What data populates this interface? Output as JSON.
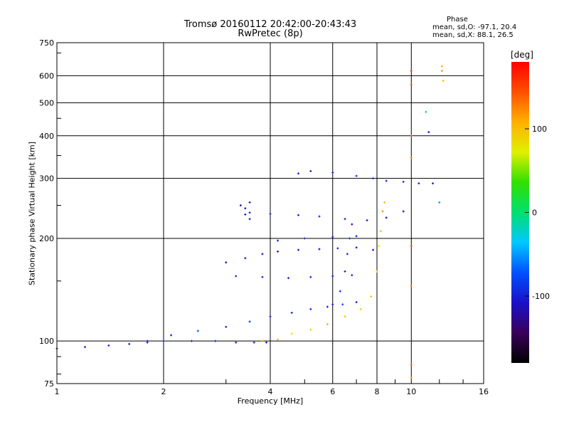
{
  "chart_data": {
    "type": "scatter",
    "title": "Tromsø 20160112 20:42:00-20:43:43",
    "subtitle": "RwPretec (8p)",
    "xlabel": "Frequency [MHz]",
    "ylabel": "Stationary phase Virtual Height [km]",
    "xscale": "log",
    "yscale": "log",
    "xlim": [
      1,
      16
    ],
    "ylim": [
      75,
      750
    ],
    "xticks": [
      "1",
      "2",
      "4",
      "6",
      "8",
      "10",
      "16"
    ],
    "xtick_values": [
      1,
      2,
      4,
      6,
      8,
      10,
      16
    ],
    "yticks": [
      "75",
      "100",
      "200",
      "300",
      "400",
      "500",
      "600",
      "750"
    ],
    "ytick_values": [
      75,
      100,
      200,
      300,
      400,
      500,
      600,
      750
    ],
    "grid": true,
    "phase_stats": {
      "title": "Phase",
      "o_line": "mean, sd,O: -97.1, 20.4",
      "x_line": "mean, sd,X:  88.1, 26.5"
    },
    "colorbar": {
      "unit": "[deg]",
      "ticks": [
        "100",
        "0",
        "-100"
      ],
      "tick_values": [
        100,
        0,
        -100
      ],
      "range": [
        -180,
        180
      ],
      "colors": [
        "#000000",
        "#3a005a",
        "#1a10c8",
        "#0050ff",
        "#00c8ff",
        "#00e070",
        "#30e000",
        "#e0f000",
        "#ffb000",
        "#ff5000",
        "#ff0000"
      ]
    },
    "traces": [
      {
        "name": "",
        "points": [
          [
            1.0,
            95,
            -100
          ],
          [
            1.2,
            96,
            -100
          ],
          [
            1.4,
            97,
            -95
          ],
          [
            1.6,
            98,
            -100
          ],
          [
            1.8,
            99,
            -100
          ],
          [
            2.0,
            100,
            -95
          ],
          [
            2.4,
            100,
            -100
          ],
          [
            2.8,
            100,
            -95
          ],
          [
            3.2,
            99,
            -100
          ],
          [
            3.6,
            99,
            -100
          ],
          [
            3.9,
            99,
            -100
          ]
        ]
      },
      {
        "name": "",
        "points": [
          [
            1.8,
            100,
            -100
          ],
          [
            2.1,
            104,
            -100
          ],
          [
            2.5,
            107,
            -70
          ],
          [
            3.0,
            110,
            -100
          ],
          [
            3.5,
            114,
            -90
          ],
          [
            4.0,
            118,
            -100
          ],
          [
            4.6,
            121,
            -100
          ],
          [
            5.2,
            124,
            -90
          ],
          [
            5.8,
            126,
            -100
          ],
          [
            6.4,
            128,
            -80
          ],
          [
            7.0,
            130,
            -100
          ]
        ]
      },
      {
        "name": "",
        "points": [
          [
            3.8,
            100,
            120
          ],
          [
            4.2,
            101,
            100
          ],
          [
            4.6,
            105,
            80
          ],
          [
            5.2,
            108,
            90
          ],
          [
            5.8,
            112,
            110
          ],
          [
            6.5,
            118,
            100
          ],
          [
            7.2,
            124,
            90
          ],
          [
            7.7,
            135,
            100
          ],
          [
            8.0,
            160,
            90
          ],
          [
            8.1,
            190,
            80
          ],
          [
            8.2,
            210,
            100
          ],
          [
            8.3,
            240,
            120
          ],
          [
            8.4,
            255,
            100
          ]
        ]
      },
      {
        "name": "",
        "points": [
          [
            3.0,
            170,
            -110
          ],
          [
            3.4,
            175,
            -115
          ],
          [
            3.8,
            180,
            -110
          ],
          [
            4.2,
            183,
            -110
          ],
          [
            4.8,
            185,
            -105
          ],
          [
            5.5,
            186,
            -110
          ],
          [
            6.2,
            187,
            -100
          ],
          [
            7.0,
            188,
            -110
          ],
          [
            7.8,
            185,
            -115
          ]
        ]
      },
      {
        "name": "",
        "points": [
          [
            3.2,
            155,
            -100
          ],
          [
            3.8,
            154,
            -95
          ],
          [
            4.5,
            153,
            -100
          ],
          [
            5.2,
            154,
            -100
          ],
          [
            6.0,
            155,
            -95
          ],
          [
            6.8,
            156,
            -100
          ]
        ]
      },
      {
        "name": "",
        "points": [
          [
            4.2,
            197,
            -100
          ],
          [
            5.0,
            200,
            -95
          ],
          [
            6.0,
            202,
            -100
          ],
          [
            7.0,
            203,
            -100
          ]
        ]
      },
      {
        "name": "",
        "points": [
          [
            3.5,
            238,
            -100
          ],
          [
            4.0,
            236,
            -100
          ],
          [
            4.8,
            234,
            -100
          ],
          [
            5.5,
            232,
            -95
          ],
          [
            6.5,
            228,
            -100
          ],
          [
            7.5,
            226,
            -105
          ],
          [
            8.5,
            230,
            -110
          ],
          [
            9.5,
            240,
            -115
          ]
        ]
      },
      {
        "name": "",
        "points": [
          [
            4.8,
            310,
            -100
          ],
          [
            5.2,
            315,
            -100
          ],
          [
            6.0,
            312,
            -100
          ],
          [
            7.0,
            305,
            -95
          ],
          [
            7.8,
            300,
            -100
          ],
          [
            8.5,
            295,
            -100
          ],
          [
            9.5,
            293,
            -95
          ],
          [
            10.5,
            290,
            -100
          ]
        ]
      },
      {
        "name": "",
        "points": [
          [
            6.0,
            128,
            -100
          ],
          [
            6.3,
            140,
            -95
          ],
          [
            6.5,
            160,
            -100
          ],
          [
            6.6,
            180,
            -95
          ],
          [
            6.7,
            200,
            -100
          ],
          [
            6.8,
            220,
            -110
          ]
        ]
      },
      {
        "name": "",
        "points": [
          [
            3.3,
            250,
            -120
          ],
          [
            3.4,
            245,
            -115
          ],
          [
            3.4,
            235,
            -110
          ],
          [
            3.5,
            255,
            -105
          ],
          [
            3.5,
            228,
            -100
          ]
        ]
      },
      {
        "name": "",
        "points": [
          [
            10.0,
            620,
            160
          ],
          [
            10.0,
            565,
            150
          ],
          [
            10.0,
            400,
            140
          ],
          [
            10.0,
            345,
            130
          ],
          [
            10.0,
            190,
            150
          ],
          [
            10.0,
            145,
            130
          ],
          [
            10.0,
            85,
            140
          ],
          [
            10.0,
            78,
            120
          ]
        ]
      },
      {
        "name": "",
        "points": [
          [
            12.2,
            640,
            110
          ],
          [
            12.2,
            620,
            120
          ],
          [
            12.3,
            580,
            100
          ],
          [
            11.0,
            470,
            -40
          ],
          [
            11.2,
            410,
            -110
          ],
          [
            11.5,
            290,
            -100
          ],
          [
            12.0,
            255,
            -50
          ]
        ]
      }
    ]
  }
}
